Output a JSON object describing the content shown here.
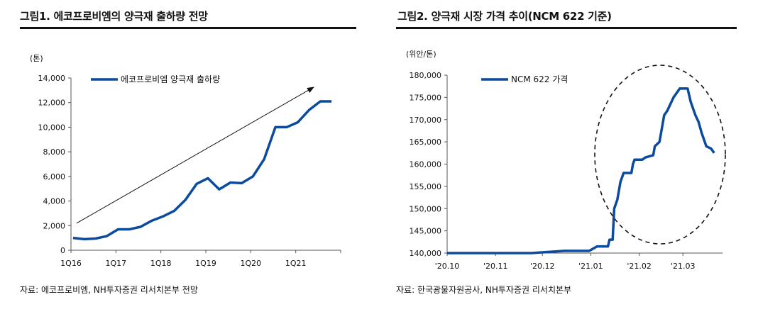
{
  "figure1": {
    "title": "그림1. 에코프로비엠의 양극재 출하량 전망",
    "source": "자료: 에코프로비엠, NH투자증권 리서치본부 전망",
    "unit": "(톤)"
  },
  "figure2": {
    "title": "그림2. 양극재 시장 가격 추이(NCM 622 기준)",
    "source": "자료: 한국광물자원공사, NH투자증권 리서치본부",
    "unit": "(위안/톤)"
  },
  "chart_data": [
    {
      "type": "line",
      "title": "그림1. 에코프로비엠의 양극재 출하량 전망",
      "ylabel": "(톤)",
      "ylim": [
        0,
        14000
      ],
      "yticks": [
        0,
        2000,
        4000,
        6000,
        8000,
        10000,
        12000,
        14000
      ],
      "ytick_labels": [
        "0",
        "2,000",
        "4,000",
        "6,000",
        "8,000",
        "10,000",
        "12,000",
        "14,000"
      ],
      "x_tick_labels": [
        "1Q16",
        "1Q17",
        "1Q18",
        "1Q19",
        "1Q20",
        "1Q21"
      ],
      "x": [
        "1Q16",
        "2Q16",
        "3Q16",
        "4Q16",
        "1Q17",
        "2Q17",
        "3Q17",
        "4Q17",
        "1Q18",
        "2Q18",
        "3Q18",
        "4Q18",
        "1Q19",
        "2Q19",
        "3Q19",
        "4Q19",
        "1Q20",
        "2Q20",
        "3Q20",
        "4Q20",
        "1Q21",
        "2Q21",
        "3Q21",
        "4Q21"
      ],
      "series": [
        {
          "name": "에코프로비엠 양극재 출하량",
          "color": "#0b4a9c",
          "values": [
            1000,
            900,
            950,
            1150,
            1700,
            1700,
            1900,
            2400,
            2750,
            3200,
            4100,
            5400,
            5850,
            4950,
            5500,
            5450,
            6000,
            7400,
            10000,
            10000,
            10400,
            11400,
            12100,
            12100
          ]
        }
      ],
      "annotations": [
        "trend-arrow"
      ],
      "grid": false,
      "legend": "top-center"
    },
    {
      "type": "line",
      "title": "그림2. 양극재 시장 가격 추이(NCM 622 기준)",
      "ylabel": "(위안/톤)",
      "ylim": [
        140000,
        180000
      ],
      "yticks": [
        140000,
        145000,
        150000,
        155000,
        160000,
        165000,
        170000,
        175000,
        180000
      ],
      "ytick_labels": [
        "140,000",
        "145,000",
        "150,000",
        "155,000",
        "160,000",
        "165,000",
        "170,000",
        "175,000",
        "180,000"
      ],
      "x_tick_labels": [
        "'20.10",
        "'20.11",
        "'20.12",
        "'21.01",
        "'21.02",
        "'21.03"
      ],
      "x": [
        "2020-10-01",
        "2020-10-31",
        "2020-11-24",
        "2020-12-15",
        "2020-12-16",
        "2020-12-31",
        "2021-01-05",
        "2021-01-06",
        "2021-01-12",
        "2021-01-13",
        "2021-01-15",
        "2021-01-16",
        "2021-01-18",
        "2021-01-20",
        "2021-01-22",
        "2021-01-23",
        "2021-01-27",
        "2021-01-28",
        "2021-01-29",
        "2021-02-01",
        "2021-02-03",
        "2021-02-05",
        "2021-02-10",
        "2021-02-11",
        "2021-02-14",
        "2021-02-15",
        "2021-02-17",
        "2021-02-19",
        "2021-02-21",
        "2021-02-23",
        "2021-02-25",
        "2021-02-27",
        "2021-03-04",
        "2021-03-06",
        "2021-03-09",
        "2021-03-11",
        "2021-03-13",
        "2021-03-15",
        "2021-03-16",
        "2021-03-19",
        "2021-03-21"
      ],
      "series": [
        {
          "name": "NCM 622 가격",
          "color": "#0b4a9c",
          "values": [
            140000,
            140000,
            140000,
            140500,
            140500,
            140500,
            141500,
            141500,
            141500,
            143000,
            143000,
            150000,
            152000,
            156000,
            158000,
            158000,
            158000,
            160000,
            161000,
            161000,
            161000,
            161500,
            162000,
            164000,
            165000,
            167000,
            171000,
            172000,
            173500,
            175000,
            176000,
            177000,
            177000,
            174000,
            171000,
            169500,
            167000,
            165000,
            164000,
            163500,
            162500
          ]
        }
      ],
      "annotations": [
        "dashed-ellipse-highlight"
      ],
      "grid": false,
      "legend": "top-left"
    }
  ]
}
